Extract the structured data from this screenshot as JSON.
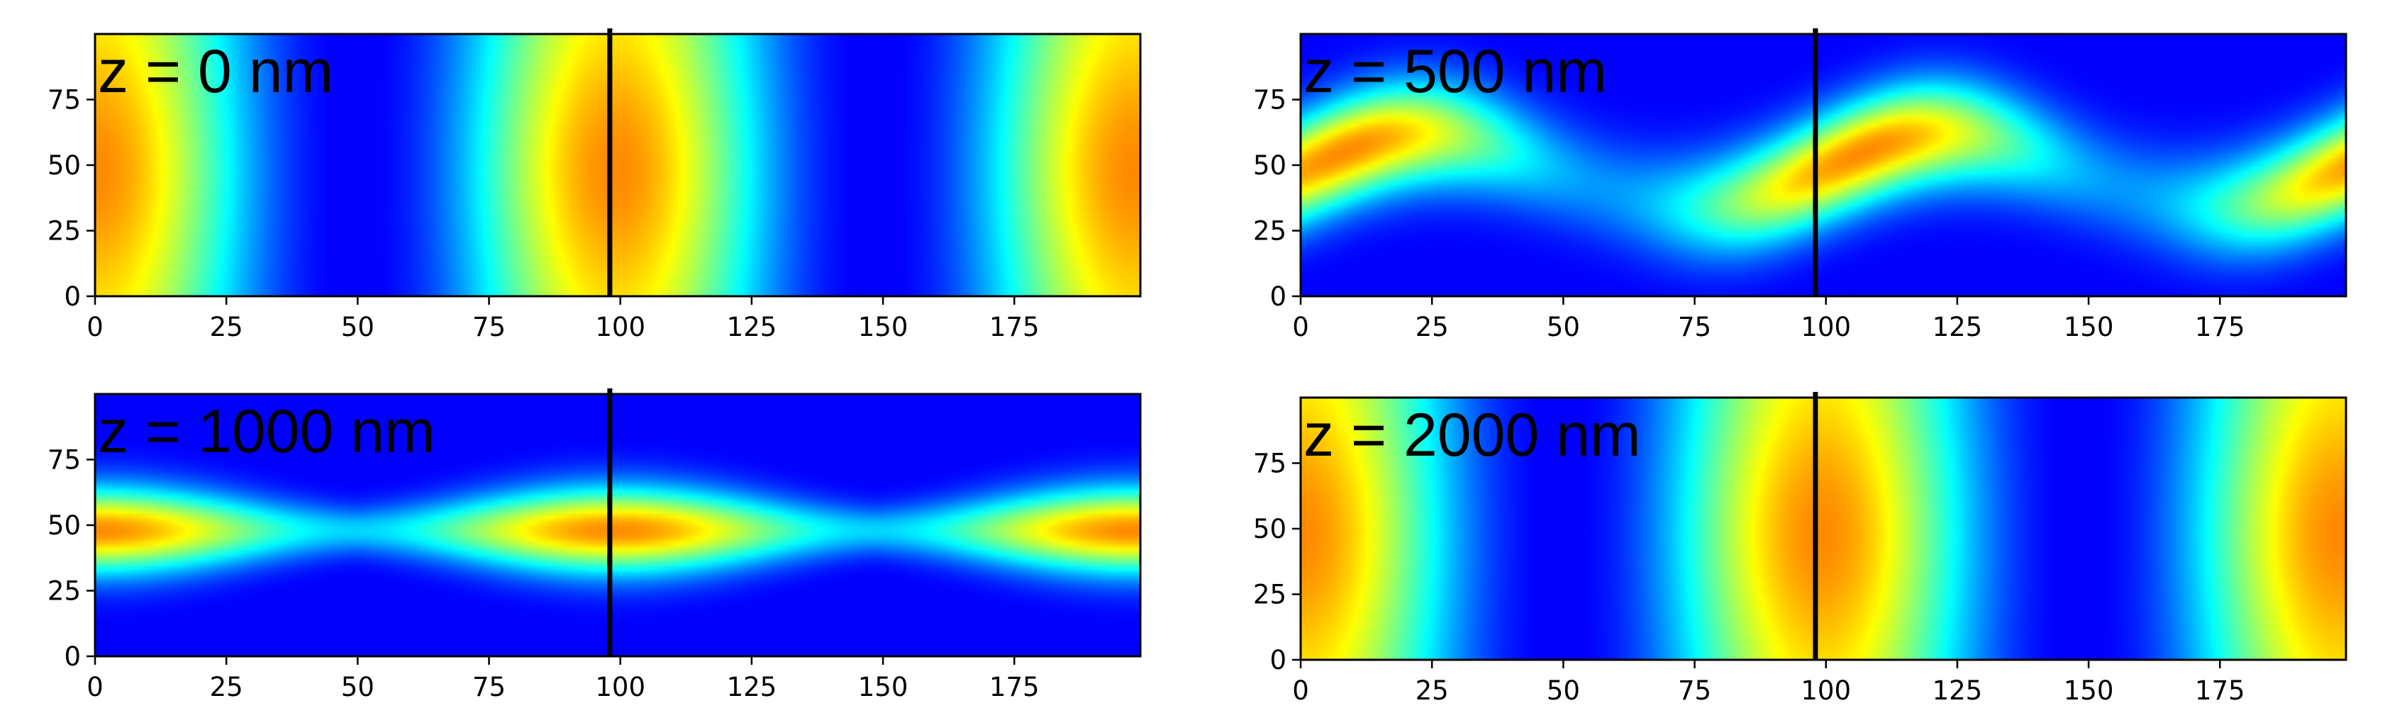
{
  "chart_data": [
    {
      "type": "heatmap",
      "label": "z = 0 nm",
      "pattern": "vertical",
      "period": 99,
      "phase": 0,
      "amp_center": 48,
      "marker_x": 98,
      "xlim": [
        0,
        199
      ],
      "ylim": [
        0,
        100
      ],
      "xticks": [
        0,
        25,
        50,
        75,
        100,
        125,
        150,
        175
      ],
      "yticks": [
        0,
        25,
        50,
        75
      ],
      "colormap": "jet",
      "grid": false
    },
    {
      "type": "heatmap",
      "label": "z = 500 nm",
      "pattern": "diagonal",
      "period": 99,
      "phase": 0,
      "amp_center": 48,
      "marker_x": 98,
      "xlim": [
        0,
        199
      ],
      "ylim": [
        0,
        100
      ],
      "xticks": [
        0,
        25,
        50,
        75,
        100,
        125,
        150,
        175
      ],
      "yticks": [
        0,
        25,
        50,
        75
      ],
      "colormap": "jet",
      "grid": false
    },
    {
      "type": "heatmap",
      "label": "z = 1000 nm",
      "pattern": "horizontal",
      "period": 99,
      "phase": 0,
      "amp_center": 48,
      "marker_x": 98,
      "xlim": [
        0,
        199
      ],
      "ylim": [
        0,
        100
      ],
      "xticks": [
        0,
        25,
        50,
        75,
        100,
        125,
        150,
        175
      ],
      "yticks": [
        0,
        25,
        50,
        75
      ],
      "colormap": "jet",
      "grid": false
    },
    {
      "type": "heatmap",
      "label": "z = 2000 nm",
      "pattern": "vertical",
      "period": 99,
      "phase": 0,
      "amp_center": 48,
      "marker_x": 98,
      "xlim": [
        0,
        199
      ],
      "ylim": [
        0,
        100
      ],
      "xticks": [
        0,
        25,
        50,
        75,
        100,
        125,
        150,
        175
      ],
      "yticks": [
        0,
        25,
        50,
        75
      ],
      "colormap": "jet",
      "grid": false
    }
  ]
}
